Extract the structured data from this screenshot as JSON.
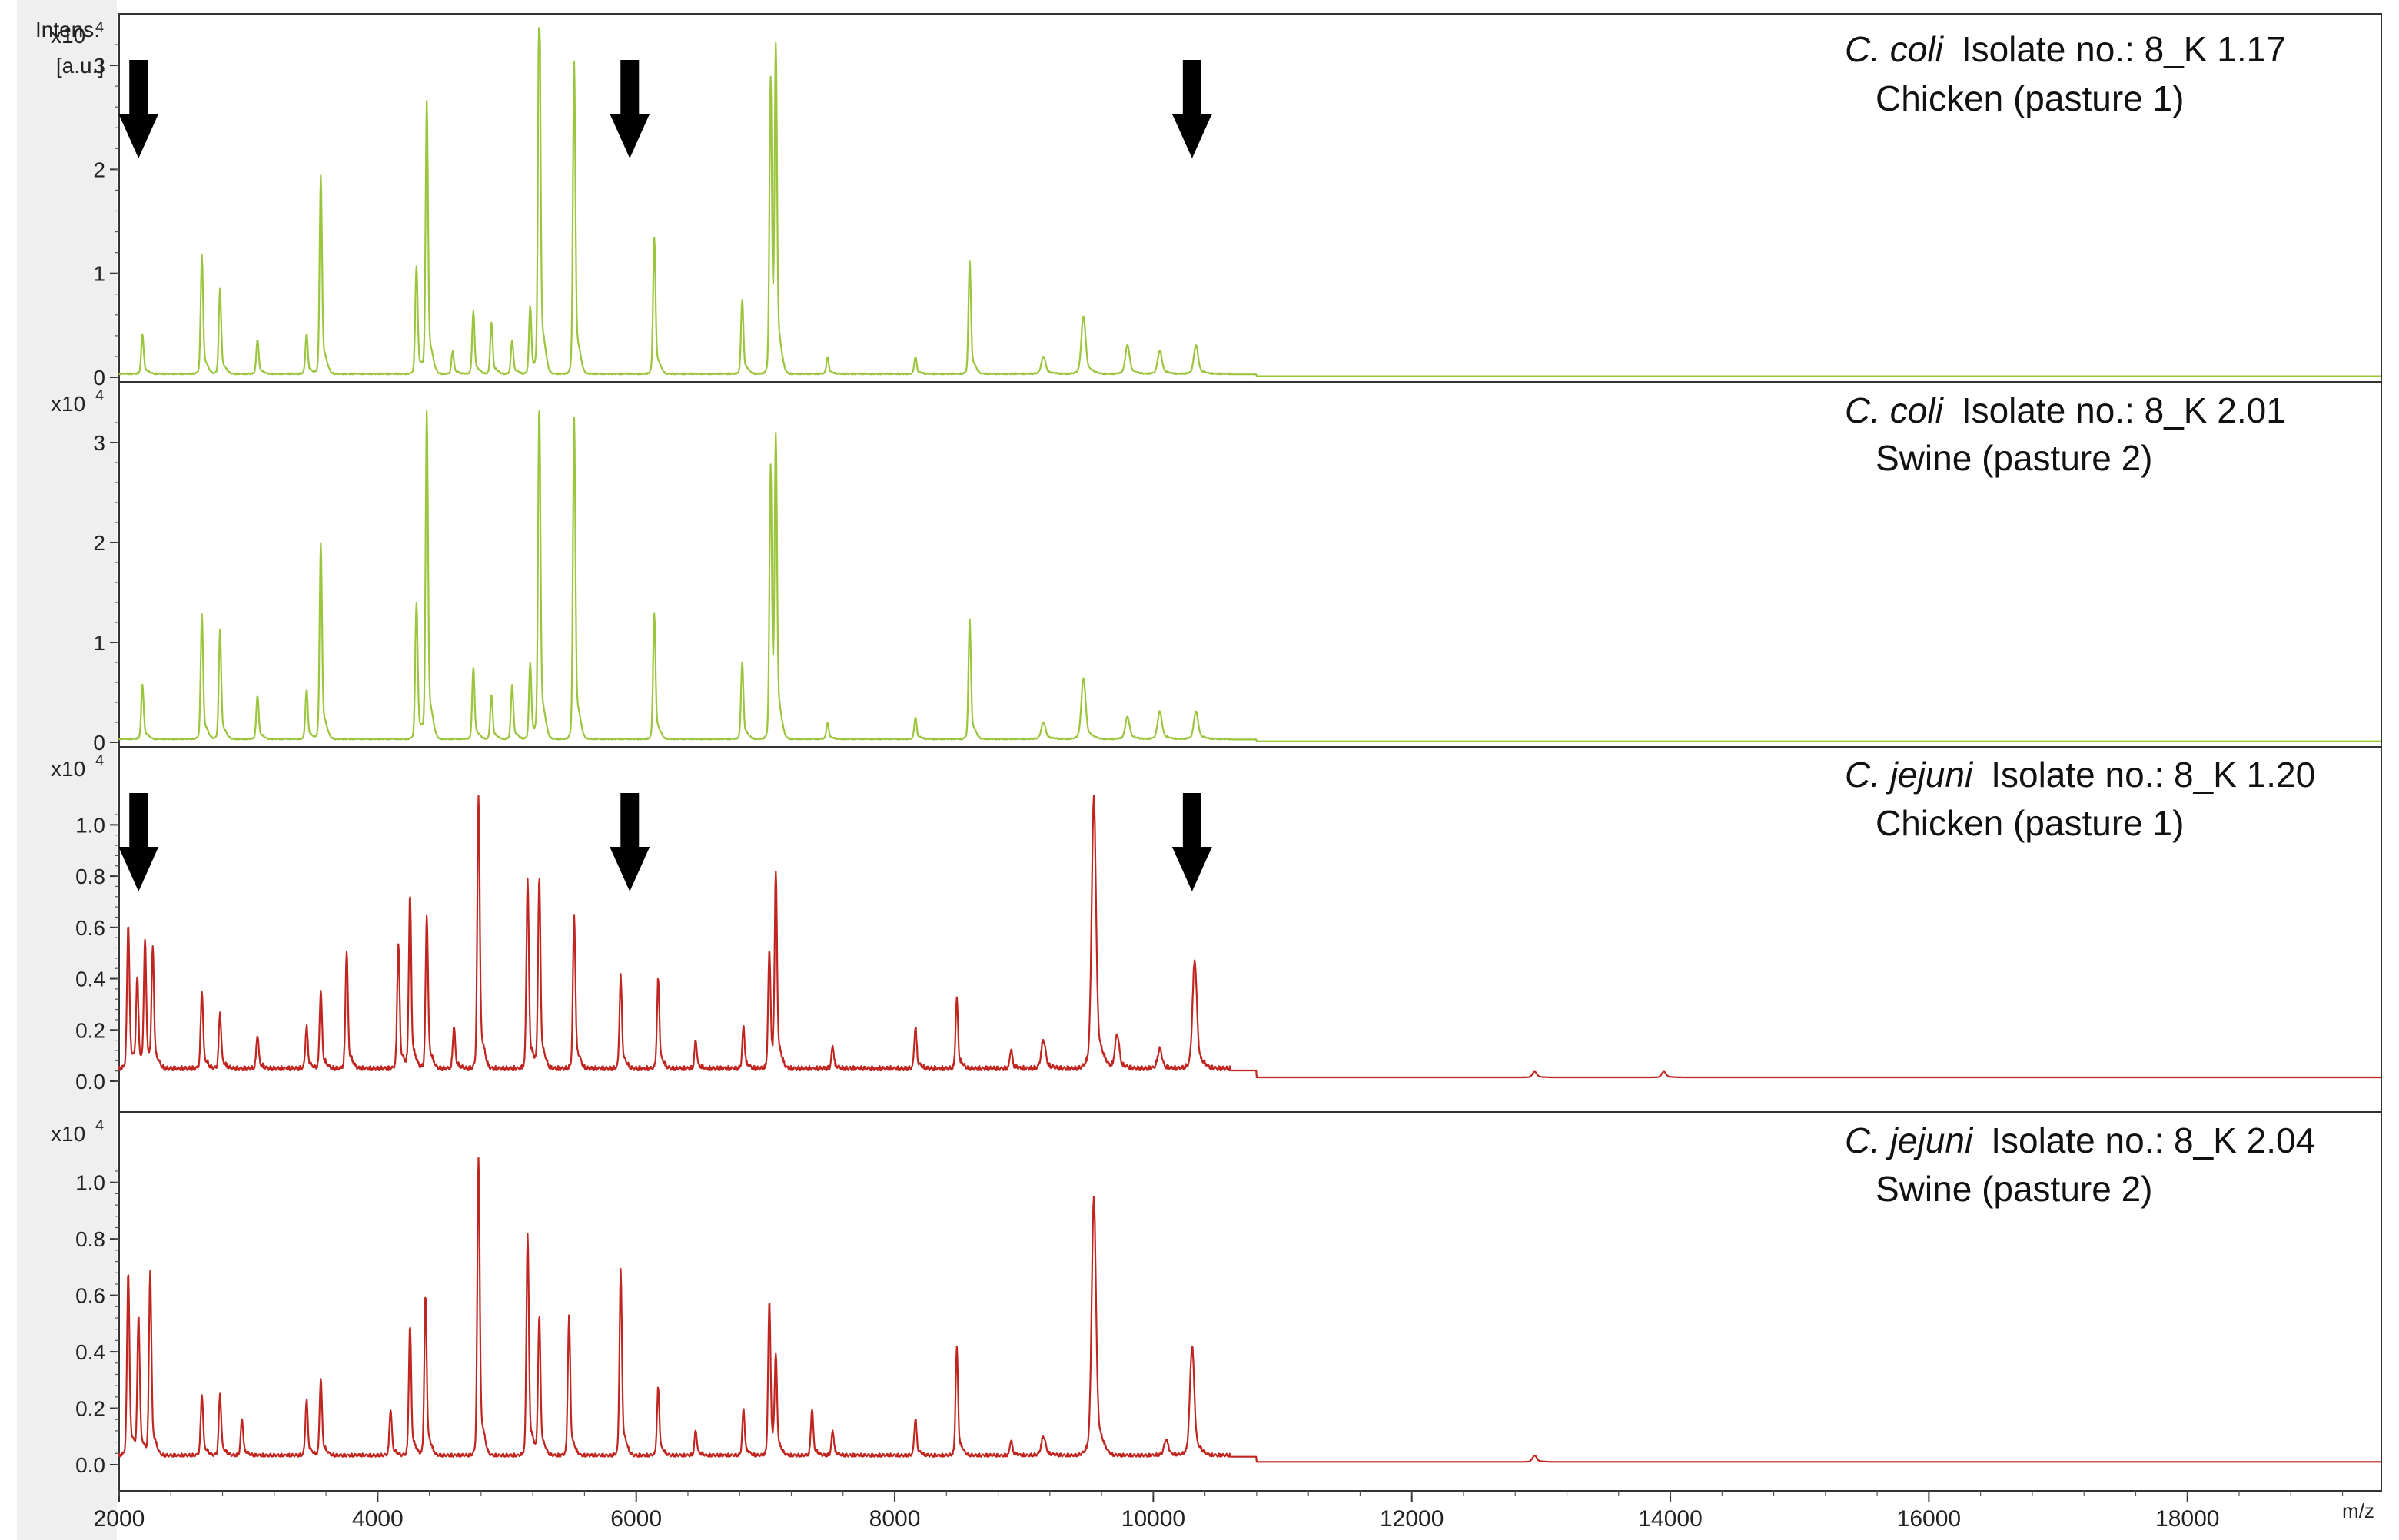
{
  "y_axis_label": [
    "Intens.",
    "[a.u.]"
  ],
  "x_axis_label": "m/z",
  "colors": {
    "c_coli": "#9bc53d",
    "c_jejuni": "#c0251f",
    "arrow": "#000000",
    "frame": "#333333",
    "background": "#ffffff"
  },
  "chart_data": [
    {
      "type": "line",
      "species": "C. coli",
      "isolate": "Isolate no.: 8_K 1.17",
      "host": "Chicken (pasture 1)",
      "multiplier": "x10",
      "exponent": "4",
      "color": "#9bc53d",
      "xlim": [
        2000,
        19500
      ],
      "ylim": [
        0,
        3.2
      ],
      "yticks": [
        "0",
        "1",
        "2",
        "3"
      ],
      "ytick_values": [
        0,
        1,
        2,
        3
      ],
      "arrows_at_mz": [
        2150,
        5950,
        10300
      ],
      "baseline": 0.02,
      "peaks": [
        [
          2180,
          0.35
        ],
        [
          2640,
          1.05
        ],
        [
          2780,
          0.75
        ],
        [
          3070,
          0.3
        ],
        [
          3450,
          0.35
        ],
        [
          3560,
          1.75
        ],
        [
          4300,
          0.95
        ],
        [
          4380,
          2.4
        ],
        [
          4580,
          0.2
        ],
        [
          4740,
          0.55
        ],
        [
          4880,
          0.45
        ],
        [
          5040,
          0.3
        ],
        [
          5180,
          0.6
        ],
        [
          5250,
          3.5
        ],
        [
          5520,
          2.75
        ],
        [
          6140,
          1.2
        ],
        [
          6820,
          0.65
        ],
        [
          7040,
          2.6
        ],
        [
          7080,
          2.7
        ],
        [
          7480,
          0.15
        ],
        [
          8160,
          0.15
        ],
        [
          8580,
          1.0
        ],
        [
          9150,
          0.15
        ],
        [
          9460,
          0.5
        ],
        [
          9800,
          0.25
        ],
        [
          10050,
          0.2
        ],
        [
          10330,
          0.25
        ]
      ]
    },
    {
      "type": "line",
      "species": "C. coli",
      "isolate": "Isolate no.: 8_K 2.01",
      "host": "Swine (pasture 2)",
      "multiplier": "x10",
      "exponent": "4",
      "color": "#9bc53d",
      "xlim": [
        2000,
        19500
      ],
      "ylim": [
        0,
        3.3
      ],
      "yticks": [
        "0",
        "1",
        "2",
        "3"
      ],
      "ytick_values": [
        0,
        1,
        2,
        3
      ],
      "arrows_at_mz": [],
      "baseline": 0.02,
      "peaks": [
        [
          2180,
          0.5
        ],
        [
          2640,
          1.15
        ],
        [
          2780,
          1.0
        ],
        [
          3070,
          0.4
        ],
        [
          3450,
          0.45
        ],
        [
          3560,
          1.8
        ],
        [
          4300,
          1.25
        ],
        [
          4380,
          3.0
        ],
        [
          4740,
          0.65
        ],
        [
          4880,
          0.4
        ],
        [
          5040,
          0.5
        ],
        [
          5180,
          0.7
        ],
        [
          5250,
          3.05
        ],
        [
          5520,
          2.95
        ],
        [
          6140,
          1.15
        ],
        [
          6820,
          0.7
        ],
        [
          7040,
          2.5
        ],
        [
          7080,
          2.6
        ],
        [
          7480,
          0.15
        ],
        [
          8160,
          0.2
        ],
        [
          8580,
          1.1
        ],
        [
          9150,
          0.15
        ],
        [
          9460,
          0.55
        ],
        [
          9800,
          0.2
        ],
        [
          10050,
          0.25
        ],
        [
          10330,
          0.25
        ]
      ]
    },
    {
      "type": "line",
      "species": "C. jejuni",
      "isolate": "Isolate no.: 8_K 1.20",
      "host": "Chicken (pasture 1)",
      "multiplier": "x10",
      "exponent": "4",
      "color": "#c0251f",
      "xlim": [
        2000,
        19500
      ],
      "ylim": [
        0,
        1.07
      ],
      "yticks": [
        "0.0",
        "0.2",
        "0.4",
        "0.6",
        "0.8",
        "1.0"
      ],
      "ytick_values": [
        0,
        0.2,
        0.4,
        0.6,
        0.8,
        1.0
      ],
      "arrows_at_mz": [
        2150,
        5950,
        10300
      ],
      "baseline": 0.03,
      "peaks": [
        [
          2070,
          0.52
        ],
        [
          2140,
          0.32
        ],
        [
          2200,
          0.45
        ],
        [
          2260,
          0.42
        ],
        [
          2640,
          0.28
        ],
        [
          2780,
          0.2
        ],
        [
          3070,
          0.12
        ],
        [
          3450,
          0.15
        ],
        [
          3560,
          0.28
        ],
        [
          3760,
          0.42
        ],
        [
          4160,
          0.45
        ],
        [
          4250,
          0.62
        ],
        [
          4380,
          0.55
        ],
        [
          4590,
          0.15
        ],
        [
          4780,
          0.98
        ],
        [
          5160,
          0.68
        ],
        [
          5250,
          0.68
        ],
        [
          5520,
          0.55
        ],
        [
          5880,
          0.33
        ],
        [
          6170,
          0.32
        ],
        [
          6460,
          0.1
        ],
        [
          6830,
          0.15
        ],
        [
          7030,
          0.42
        ],
        [
          7080,
          0.68
        ],
        [
          7520,
          0.08
        ],
        [
          8160,
          0.15
        ],
        [
          8480,
          0.25
        ],
        [
          8900,
          0.07
        ],
        [
          9150,
          0.1
        ],
        [
          9540,
          0.95
        ],
        [
          9720,
          0.12
        ],
        [
          10050,
          0.07
        ],
        [
          10320,
          0.38
        ],
        [
          12950,
          0.02
        ],
        [
          13950,
          0.02
        ]
      ]
    },
    {
      "type": "line",
      "species": "C. jejuni",
      "isolate": "Isolate no.: 8_K 2.04",
      "host": "Swine (pasture 2)",
      "multiplier": "x10",
      "exponent": "4",
      "color": "#c0251f",
      "xlim": [
        2000,
        19500
      ],
      "ylim": [
        0,
        1.07
      ],
      "yticks": [
        "0.0",
        "0.2",
        "0.4",
        "0.6",
        "0.8",
        "1.0"
      ],
      "ytick_values": [
        0,
        0.2,
        0.4,
        0.6,
        0.8,
        1.0
      ],
      "arrows_at_mz": [],
      "baseline": 0.02,
      "peaks": [
        [
          2070,
          0.6
        ],
        [
          2150,
          0.45
        ],
        [
          2240,
          0.6
        ],
        [
          2640,
          0.2
        ],
        [
          2780,
          0.2
        ],
        [
          2950,
          0.12
        ],
        [
          3450,
          0.18
        ],
        [
          3560,
          0.25
        ],
        [
          4100,
          0.15
        ],
        [
          4250,
          0.42
        ],
        [
          4370,
          0.52
        ],
        [
          4780,
          0.97
        ],
        [
          5160,
          0.72
        ],
        [
          5250,
          0.45
        ],
        [
          5480,
          0.45
        ],
        [
          5880,
          0.6
        ],
        [
          6170,
          0.22
        ],
        [
          6460,
          0.08
        ],
        [
          6830,
          0.15
        ],
        [
          7030,
          0.5
        ],
        [
          7080,
          0.3
        ],
        [
          7360,
          0.15
        ],
        [
          7520,
          0.08
        ],
        [
          8160,
          0.12
        ],
        [
          8480,
          0.35
        ],
        [
          8900,
          0.05
        ],
        [
          9150,
          0.06
        ],
        [
          9540,
          0.82
        ],
        [
          10100,
          0.05
        ],
        [
          10300,
          0.35
        ],
        [
          12950,
          0.02
        ]
      ]
    }
  ],
  "x_ticks": {
    "labels": [
      "2000",
      "4000",
      "6000",
      "8000",
      "10000",
      "12000",
      "14000",
      "16000",
      "18000"
    ],
    "values": [
      2000,
      4000,
      6000,
      8000,
      10000,
      12000,
      14000,
      16000,
      18000
    ]
  }
}
